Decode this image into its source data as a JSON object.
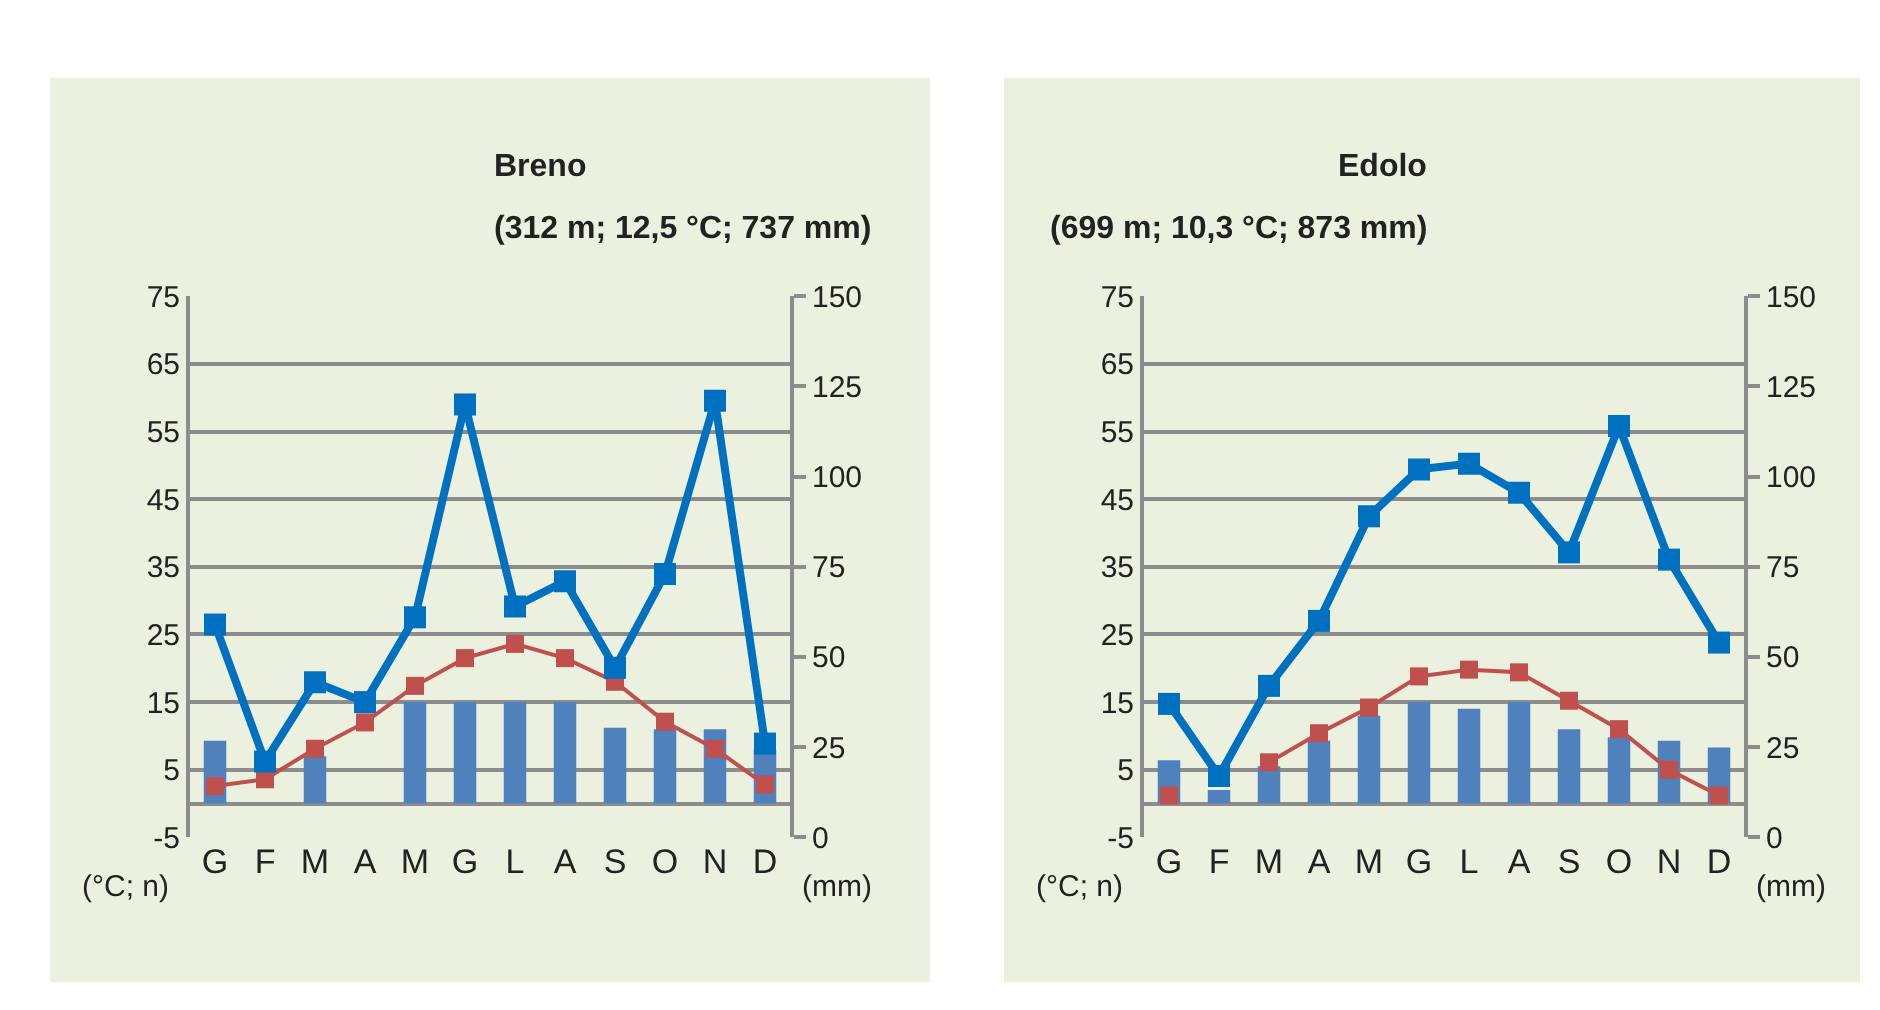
{
  "chart_data": [
    {
      "type": "bar",
      "title": "Breno",
      "subtitle": "(312 m; 12,5 °C; 737 mm)",
      "ylabel": "(°C; n)",
      "y2label": "(mm)",
      "categories": [
        "G",
        "F",
        "M",
        "A",
        "M",
        "G",
        "L",
        "A",
        "S",
        "O",
        "N",
        "D"
      ],
      "series": [
        {
          "color": "#4f81bd",
          "values": [
            9.3,
            null,
            7,
            null,
            15,
            15,
            15,
            15,
            11.2,
            11,
            11,
            8
          ]
        },
        {
          "type": "line",
          "color": "#c0504d",
          "marker": "square",
          "values": [
            2.6,
            3.6,
            8.1,
            12,
            17.4,
            21.5,
            23.6,
            21.5,
            18,
            12.1,
            8.1,
            2.8
          ]
        },
        {
          "type": "line",
          "axis": "y2",
          "color": "#0070c0",
          "marker": "square",
          "values": [
            59,
            21,
            43,
            37.5,
            61,
            120,
            64,
            71,
            47,
            73,
            121,
            26
          ]
        }
      ],
      "ylim": [
        -5,
        75
      ],
      "yticks": [
        -5,
        5,
        15,
        25,
        35,
        45,
        55,
        65,
        75
      ],
      "y2lim": [
        0,
        150
      ],
      "y2ticks": [
        0,
        25,
        50,
        75,
        100,
        125,
        150
      ],
      "grid": "y"
    },
    {
      "type": "bar",
      "title": "Edolo",
      "subtitle": "(699 m; 10,3 °C; 873 mm)",
      "ylabel": "(°C; n)",
      "y2label": "(mm)",
      "categories": [
        "G",
        "F",
        "M",
        "A",
        "M",
        "G",
        "L",
        "A",
        "S",
        "O",
        "N",
        "D"
      ],
      "series": [
        {
          "color": "#4f81bd",
          "values": [
            6.4,
            2,
            5.5,
            9.3,
            13,
            15,
            14,
            15,
            11,
            9.8,
            9.3,
            8.3
          ]
        },
        {
          "type": "line",
          "color": "#c0504d",
          "marker": "square",
          "values": [
            1.2,
            null,
            6.1,
            10.4,
            14.2,
            18.8,
            19.8,
            19.4,
            15.2,
            11,
            5,
            1.2
          ]
        },
        {
          "type": "line",
          "axis": "y2",
          "color": "#0070c0",
          "marker": "square",
          "values": [
            37,
            17,
            42,
            60,
            89,
            102,
            103.6,
            95.5,
            79,
            114,
            77,
            54
          ]
        }
      ],
      "ylim": [
        -5,
        75
      ],
      "yticks": [
        -5,
        5,
        15,
        25,
        35,
        45,
        55,
        65,
        75
      ],
      "y2lim": [
        0,
        150
      ],
      "y2ticks": [
        0,
        25,
        50,
        75,
        100,
        125,
        150
      ],
      "grid": "y"
    }
  ]
}
